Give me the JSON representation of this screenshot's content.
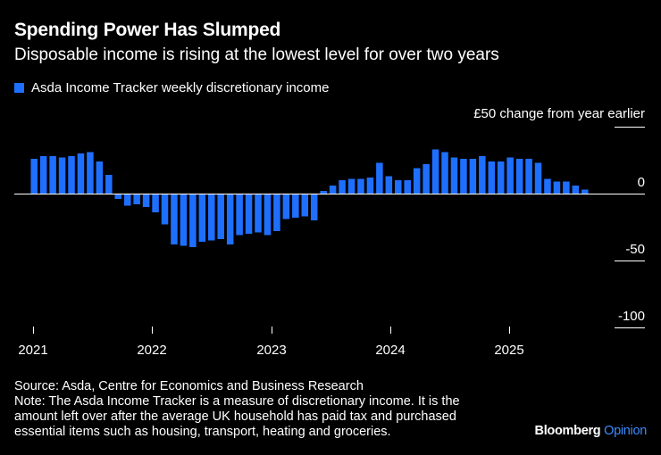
{
  "chart_data": {
    "type": "bar",
    "title": "Spending Power Has Slumped",
    "subtitle": "Disposable income is rising at the lowest level for over two years",
    "legend": [
      "Asda Income Tracker weekly discretionary income"
    ],
    "ylabel": "£50 change from year earlier",
    "ylim": [
      -100,
      50
    ],
    "yticks": [
      0,
      -50,
      -100
    ],
    "ytick_labels": [
      "0",
      "-50",
      "-100"
    ],
    "xticks": [
      "2021",
      "2022",
      "2023",
      "2024",
      "2025"
    ],
    "series": [
      {
        "name": "Asda Income Tracker weekly discretionary income",
        "color": "#1f6fff",
        "values": [
          26,
          28,
          28,
          27,
          28,
          30,
          31,
          24,
          14,
          -4,
          -9,
          -8,
          -10,
          -14,
          -23,
          -38,
          -39,
          -40,
          -36,
          -35,
          -34,
          -38,
          -31,
          -30,
          -29,
          -31,
          -28,
          -19,
          -18,
          -17,
          -20,
          2,
          6,
          10,
          11,
          11,
          12,
          23,
          13,
          10,
          10,
          19,
          22,
          33,
          31,
          27,
          26,
          26,
          28,
          24,
          24,
          27,
          26,
          26,
          23,
          11,
          9,
          9,
          6,
          3
        ]
      }
    ]
  },
  "source": {
    "line1": "Source: Asda, Centre for Economics and Business Research",
    "line2": "Note: The Asda Income Tracker is a measure of discretionary income. It is the",
    "line3": "amount left over after the average UK household has paid tax and purchased",
    "line4": "essential items such as housing, transport, heating and groceries."
  },
  "brand": {
    "name": "Bloomberg",
    "suffix": "Opinion"
  },
  "colors": {
    "bar": "#1f6fff",
    "opinion": "#3d8bff",
    "axis": "#ffffff",
    "background": "#000000"
  }
}
